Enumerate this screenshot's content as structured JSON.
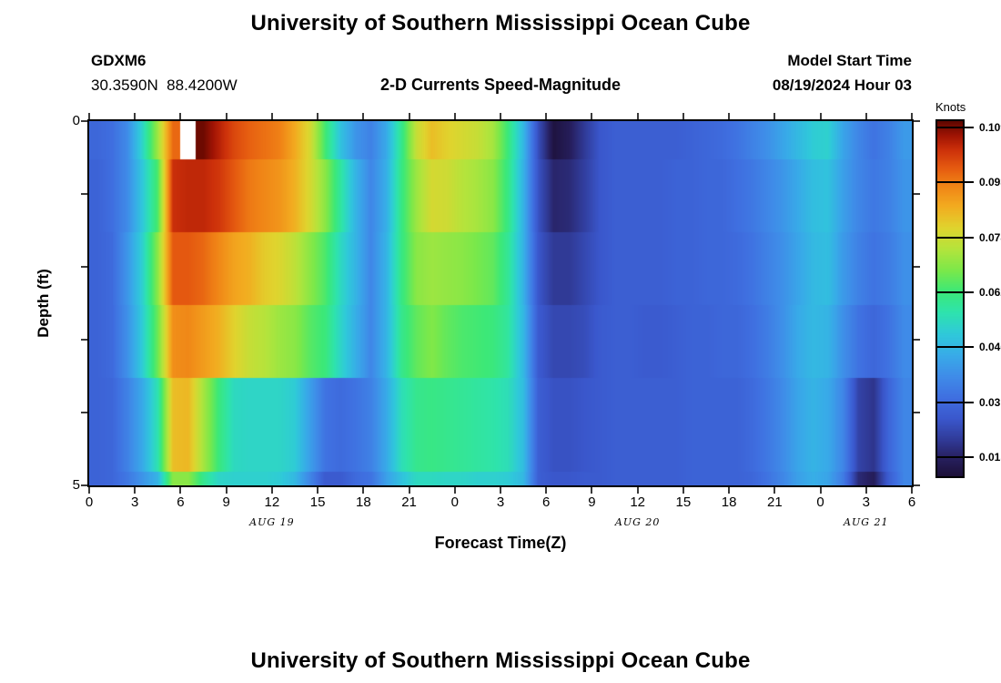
{
  "header": {
    "title": "University of Southern Mississippi Ocean Cube",
    "station_id": "GDXM6",
    "coordinates": "30.3590N  88.4200W",
    "subtitle": "2-D Currents Speed-Magnitude",
    "model_start_label": "Model Start Time",
    "model_start_value": "08/19/2024 Hour 03"
  },
  "footer": {
    "next_panel_title": "University of Southern Mississippi Ocean Cube"
  },
  "yaxis": {
    "label": "Depth (ft)",
    "top_tick_label": "0",
    "bottom_tick_label": "5"
  },
  "xaxis": {
    "label": "Forecast Time(Z)"
  },
  "chart_data": {
    "type": "heatmap",
    "title": "2-D Currents Speed-Magnitude",
    "xlabel": "Forecast Time(Z)",
    "ylabel": "Depth (ft)",
    "units": "Knots",
    "x_hours_start": 0,
    "x_hours_end": 54,
    "x_tick_interval_hours": 3,
    "x_tick_labels": [
      "0",
      "3",
      "6",
      "9",
      "12",
      "15",
      "18",
      "21",
      "0",
      "3",
      "6",
      "9",
      "12",
      "15",
      "18",
      "21",
      "0",
      "3",
      "6"
    ],
    "x_date_labels": [
      {
        "label": "AUG 19",
        "hour": 12
      },
      {
        "label": "AUG 20",
        "hour": 36
      },
      {
        "label": "AUG 21",
        "hour": 51
      }
    ],
    "ylim": [
      0,
      5
    ],
    "depth_ticks": [
      0,
      1,
      2,
      3,
      4,
      5
    ],
    "depth_row_bounds_ft": [
      0,
      0.52,
      1.52,
      2.52,
      3.52,
      4.81,
      5.0
    ],
    "grid": false,
    "colorbar": {
      "title": "Knots",
      "position": "right",
      "vmin": 0.0099,
      "vmax": 0.1109,
      "tick_values": [
        0.10937,
        0.09375,
        0.07812,
        0.0625,
        0.04687,
        0.03125,
        0.01562
      ],
      "tick_labels": [
        "0.10937",
        "0.09375",
        "0.07812",
        "0.06250",
        "0.04687",
        "0.03125",
        "0.01562"
      ]
    },
    "colormap_stops": [
      [
        0.0,
        "#1c1038"
      ],
      [
        0.05,
        "#272060"
      ],
      [
        0.1,
        "#303a96"
      ],
      [
        0.16,
        "#3a57cc"
      ],
      [
        0.22,
        "#3f6fe0"
      ],
      [
        0.28,
        "#3f8ce8"
      ],
      [
        0.34,
        "#38abe8"
      ],
      [
        0.4,
        "#2fc9da"
      ],
      [
        0.46,
        "#2ee3ae"
      ],
      [
        0.52,
        "#3ce878"
      ],
      [
        0.58,
        "#7ce84a"
      ],
      [
        0.64,
        "#b4e43c"
      ],
      [
        0.7,
        "#e0d42e"
      ],
      [
        0.76,
        "#f2ac20"
      ],
      [
        0.82,
        "#f08316"
      ],
      [
        0.87,
        "#e55a10"
      ],
      [
        0.92,
        "#cc300a"
      ],
      [
        0.96,
        "#a01404"
      ],
      [
        1.0,
        "#5f0700"
      ]
    ],
    "missing_cell": {
      "row": 0,
      "hour": 6,
      "color": "#ffffff"
    },
    "rows": [
      [
        0.03,
        0.032,
        0.038,
        0.053,
        0.072,
        0.096,
        null,
        0.11,
        0.105,
        0.1,
        0.097,
        0.095,
        0.093,
        0.087,
        0.079,
        0.063,
        0.049,
        0.04,
        0.036,
        0.044,
        0.06,
        0.077,
        0.084,
        0.081,
        0.079,
        0.077,
        0.073,
        0.062,
        0.047,
        0.024,
        0.011,
        0.014,
        0.02,
        0.026,
        0.028,
        0.028,
        0.028,
        0.028,
        0.028,
        0.029,
        0.03,
        0.031,
        0.033,
        0.036,
        0.039,
        0.043,
        0.047,
        0.051,
        0.052,
        0.043,
        0.037,
        0.033,
        0.036,
        0.041
      ],
      [
        0.029,
        0.032,
        0.038,
        0.05,
        0.064,
        0.103,
        0.104,
        0.104,
        0.102,
        0.098,
        0.094,
        0.092,
        0.09,
        0.086,
        0.079,
        0.07,
        0.058,
        0.046,
        0.037,
        0.045,
        0.061,
        0.072,
        0.079,
        0.078,
        0.075,
        0.073,
        0.07,
        0.061,
        0.046,
        0.025,
        0.016,
        0.017,
        0.021,
        0.026,
        0.028,
        0.028,
        0.028,
        0.028,
        0.029,
        0.029,
        0.03,
        0.03,
        0.032,
        0.034,
        0.037,
        0.04,
        0.044,
        0.048,
        0.049,
        0.042,
        0.037,
        0.034,
        0.036,
        0.04
      ],
      [
        0.029,
        0.031,
        0.04,
        0.052,
        0.07,
        0.098,
        0.098,
        0.096,
        0.092,
        0.088,
        0.086,
        0.082,
        0.08,
        0.076,
        0.07,
        0.064,
        0.054,
        0.046,
        0.037,
        0.046,
        0.061,
        0.07,
        0.072,
        0.071,
        0.07,
        0.068,
        0.066,
        0.059,
        0.046,
        0.026,
        0.02,
        0.02,
        0.023,
        0.026,
        0.028,
        0.028,
        0.028,
        0.028,
        0.029,
        0.029,
        0.03,
        0.03,
        0.031,
        0.033,
        0.036,
        0.039,
        0.043,
        0.047,
        0.048,
        0.041,
        0.036,
        0.033,
        0.035,
        0.039
      ],
      [
        0.029,
        0.031,
        0.039,
        0.051,
        0.067,
        0.091,
        0.092,
        0.089,
        0.086,
        0.081,
        0.077,
        0.075,
        0.072,
        0.07,
        0.065,
        0.062,
        0.053,
        0.045,
        0.037,
        0.046,
        0.06,
        0.066,
        0.069,
        0.066,
        0.064,
        0.063,
        0.062,
        0.058,
        0.047,
        0.027,
        0.023,
        0.023,
        0.024,
        0.027,
        0.028,
        0.028,
        0.027,
        0.027,
        0.028,
        0.029,
        0.029,
        0.03,
        0.03,
        0.032,
        0.035,
        0.039,
        0.044,
        0.047,
        0.046,
        0.039,
        0.033,
        0.03,
        0.033,
        0.038
      ],
      [
        0.029,
        0.03,
        0.036,
        0.044,
        0.056,
        0.084,
        0.085,
        0.073,
        0.062,
        0.054,
        0.053,
        0.053,
        0.053,
        0.051,
        0.042,
        0.033,
        0.031,
        0.033,
        0.036,
        0.044,
        0.055,
        0.06,
        0.061,
        0.06,
        0.059,
        0.058,
        0.057,
        0.055,
        0.048,
        0.028,
        0.025,
        0.025,
        0.026,
        0.027,
        0.028,
        0.028,
        0.028,
        0.028,
        0.028,
        0.029,
        0.029,
        0.029,
        0.029,
        0.031,
        0.034,
        0.038,
        0.043,
        0.046,
        0.044,
        0.037,
        0.022,
        0.019,
        0.03,
        0.037
      ],
      [
        0.029,
        0.03,
        0.034,
        0.04,
        0.046,
        0.07,
        0.07,
        0.06,
        0.053,
        0.052,
        0.052,
        0.052,
        0.051,
        0.047,
        0.037,
        0.027,
        0.027,
        0.031,
        0.033,
        0.042,
        0.049,
        0.054,
        0.054,
        0.053,
        0.053,
        0.052,
        0.052,
        0.051,
        0.047,
        0.028,
        0.026,
        0.026,
        0.027,
        0.027,
        0.028,
        0.028,
        0.028,
        0.028,
        0.028,
        0.029,
        0.029,
        0.029,
        0.029,
        0.03,
        0.033,
        0.037,
        0.042,
        0.045,
        0.043,
        0.035,
        0.017,
        0.014,
        0.028,
        0.037
      ]
    ]
  }
}
